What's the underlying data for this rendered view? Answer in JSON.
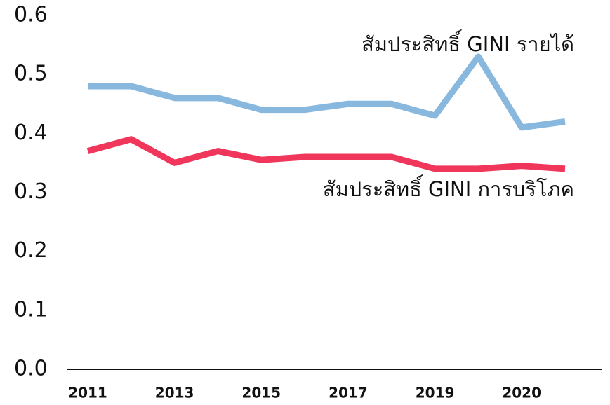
{
  "chart_data": {
    "type": "line",
    "categories": [
      "2011",
      null,
      "2013",
      null,
      "2015",
      null,
      "2017",
      null,
      "2019",
      null,
      "2020",
      null
    ],
    "series": [
      {
        "name": "สัมประสิทธิ์ GINI รายได้",
        "color": "#88b8de",
        "values": [
          0.48,
          0.48,
          0.46,
          0.46,
          0.44,
          0.44,
          0.45,
          0.45,
          0.43,
          0.53,
          0.41,
          0.42
        ]
      },
      {
        "name": "สัมประสิทธิ์ GINI การบริโภค",
        "color": "#f0365a",
        "values": [
          0.37,
          0.39,
          0.35,
          0.37,
          0.355,
          0.36,
          0.36,
          0.36,
          0.34,
          0.34,
          0.345,
          0.34
        ]
      }
    ],
    "ylim": [
      0,
      0.6
    ],
    "yticks": [
      {
        "value": 0,
        "label": "0.0"
      },
      0.1,
      0.2,
      0.3,
      0.4,
      0.5,
      0.6
    ],
    "grid": false
  }
}
